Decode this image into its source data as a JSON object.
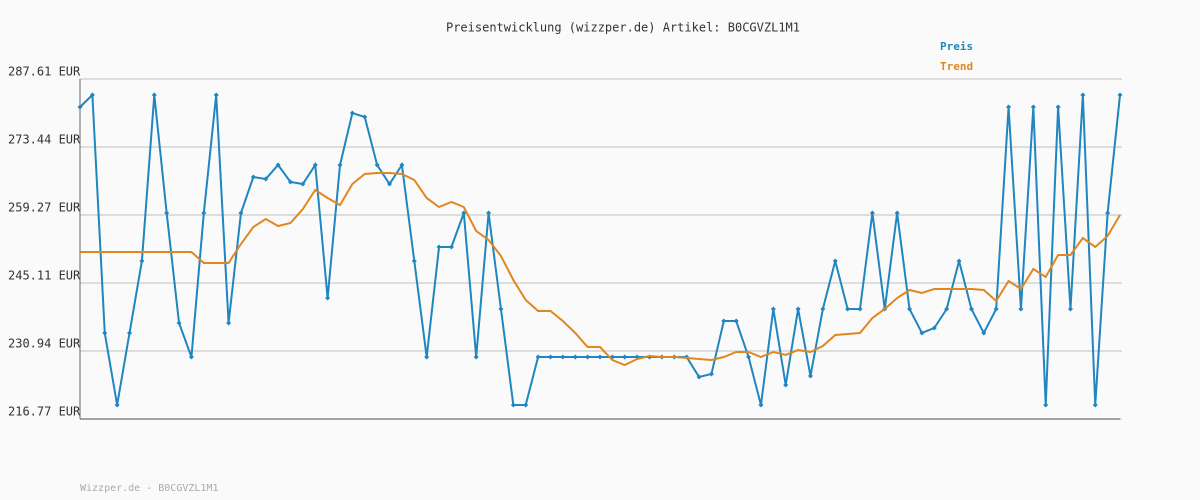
{
  "chart_data": {
    "type": "line",
    "title": "Preisentwicklung (wizzper.de) Artikel: B0CGVZL1M1",
    "footer": "Wizzper.de - B0CGVZL1M1",
    "ylim": [
      216.77,
      287.61
    ],
    "yticks": [
      {
        "value": 216.77,
        "label": "216.77 EUR"
      },
      {
        "value": 230.94,
        "label": "230.94 EUR"
      },
      {
        "value": 245.11,
        "label": "245.11 EUR"
      },
      {
        "value": 259.27,
        "label": "259.27 EUR"
      },
      {
        "value": 273.44,
        "label": "273.44 EUR"
      },
      {
        "value": 287.61,
        "label": "287.61 EUR"
      }
    ],
    "grid": true,
    "series": [
      {
        "name": "Preis",
        "color": "#1f86c0",
        "markers": true,
        "values": [
          281.78,
          284.28,
          234.69,
          219.69,
          234.69,
          249.69,
          284.28,
          259.69,
          236.77,
          229.69,
          259.69,
          284.28,
          236.77,
          259.69,
          267.19,
          266.77,
          269.69,
          266.15,
          265.73,
          269.69,
          241.98,
          269.69,
          280.53,
          279.69,
          269.69,
          265.73,
          269.69,
          249.69,
          229.69,
          252.61,
          252.61,
          259.69,
          229.69,
          259.69,
          239.69,
          219.69,
          219.69,
          229.69,
          229.69,
          229.69,
          229.69,
          229.69,
          229.69,
          229.69,
          229.69,
          229.69,
          229.69,
          229.69,
          229.69,
          229.69,
          225.52,
          226.15,
          237.19,
          237.19,
          229.69,
          219.69,
          239.69,
          223.85,
          239.69,
          225.73,
          239.69,
          249.69,
          239.69,
          239.69,
          259.69,
          239.69,
          259.69,
          239.69,
          234.69,
          235.73,
          239.69,
          249.69,
          239.69,
          234.69,
          239.69,
          281.78,
          239.69,
          281.78,
          219.69,
          281.78,
          239.69,
          284.28,
          219.69,
          259.69,
          284.28
        ]
      },
      {
        "name": "Trend",
        "color": "#e0871f",
        "markers": false,
        "values": [
          251.57,
          251.57,
          251.57,
          251.57,
          251.57,
          251.57,
          251.57,
          251.57,
          251.57,
          251.57,
          249.27,
          249.27,
          249.27,
          253.23,
          256.77,
          258.44,
          256.98,
          257.61,
          260.52,
          264.48,
          262.82,
          261.36,
          265.73,
          267.82,
          268.03,
          268.03,
          267.82,
          266.57,
          262.82,
          260.94,
          261.98,
          260.94,
          255.94,
          254.07,
          250.73,
          245.73,
          241.56,
          239.27,
          239.27,
          237.19,
          234.69,
          231.77,
          231.77,
          229.06,
          228.02,
          229.27,
          229.9,
          229.69,
          229.69,
          229.48,
          229.27,
          229.06,
          229.69,
          230.73,
          230.73,
          229.69,
          230.73,
          230.11,
          231.15,
          230.73,
          231.98,
          234.27,
          234.48,
          234.69,
          237.81,
          239.69,
          241.98,
          243.65,
          243.02,
          243.86,
          243.86,
          243.86,
          243.86,
          243.65,
          241.36,
          245.52,
          243.86,
          248.02,
          246.36,
          250.94,
          250.94,
          254.48,
          252.61,
          254.9,
          259.27
        ]
      }
    ]
  }
}
